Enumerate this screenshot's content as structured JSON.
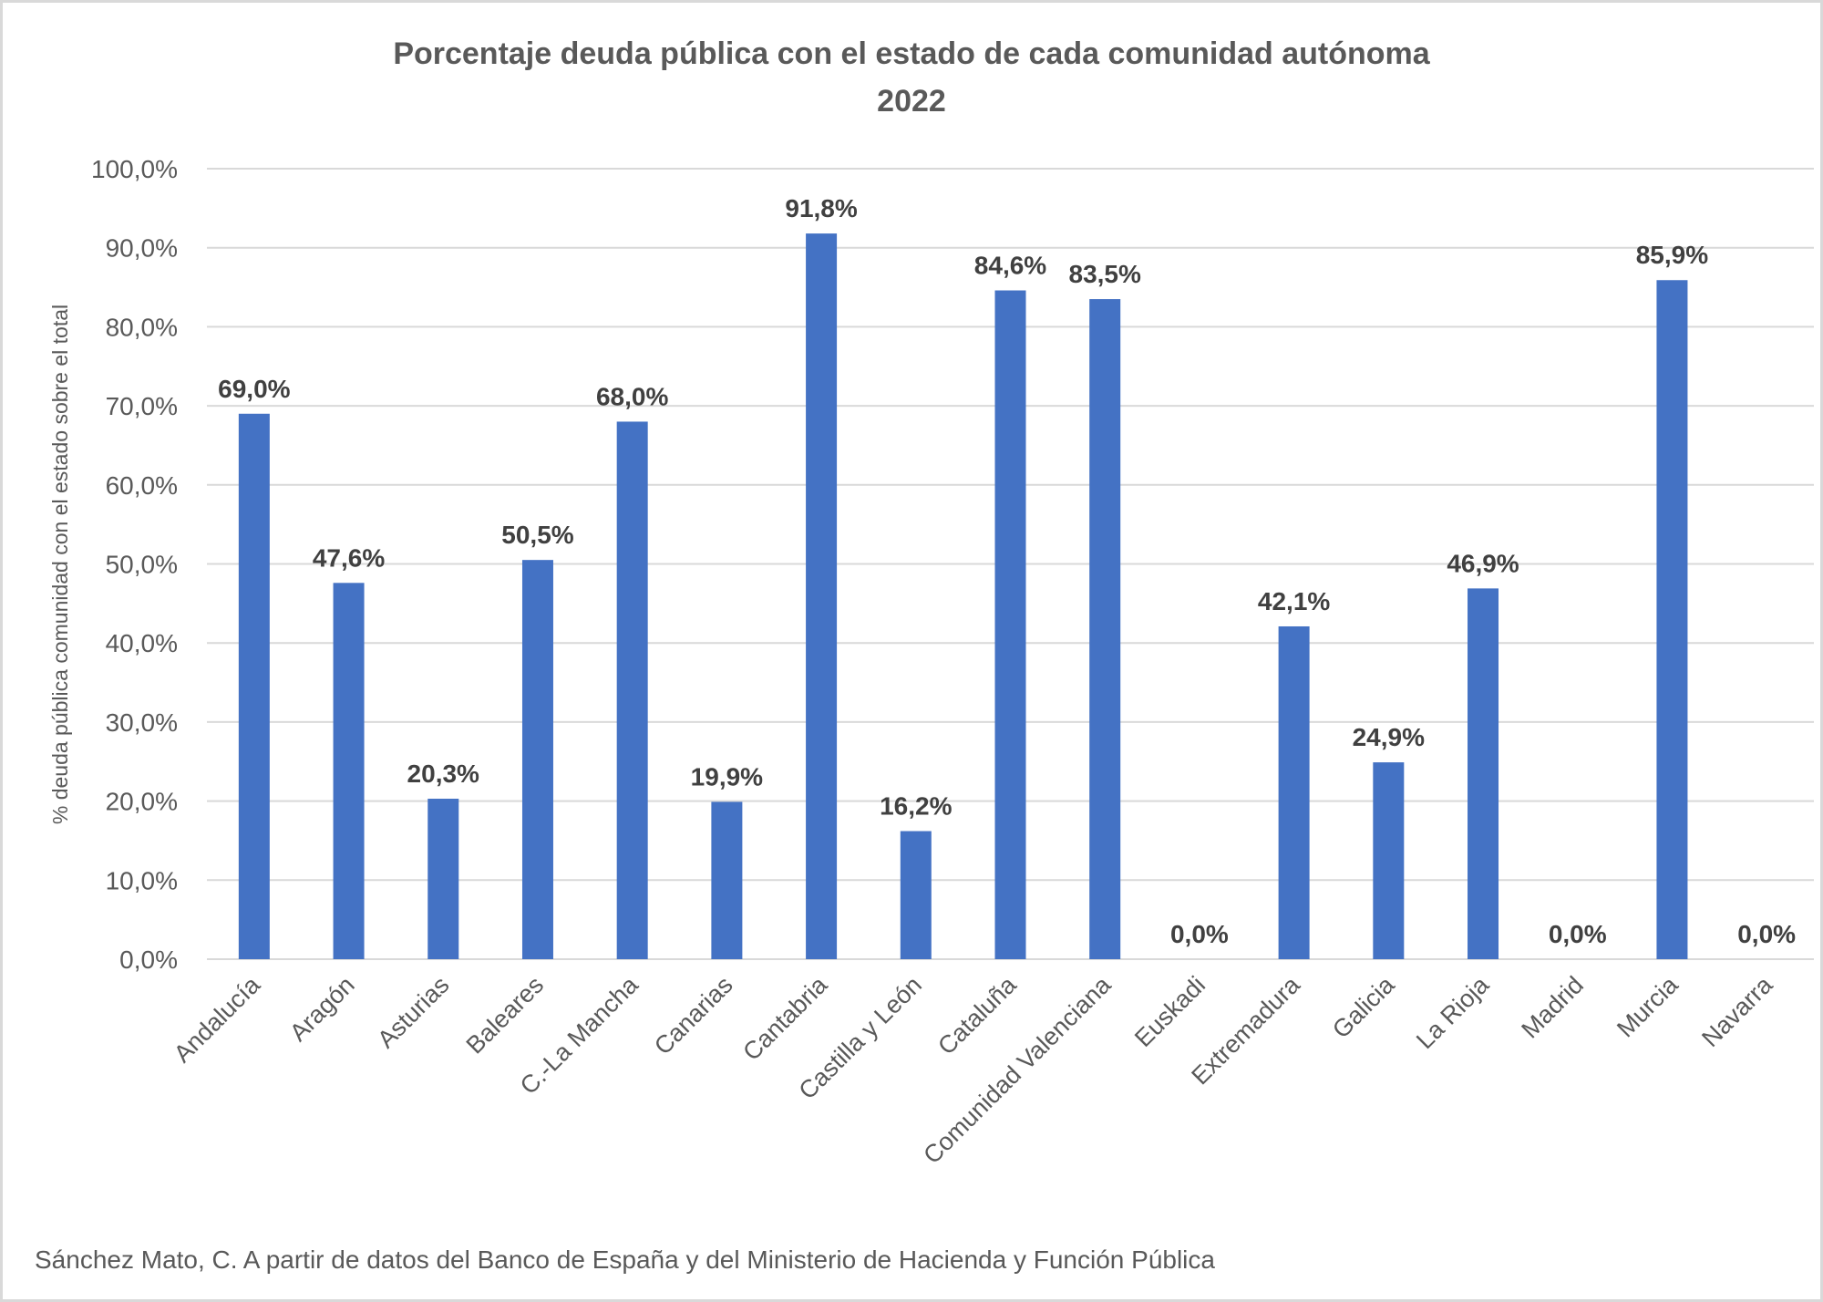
{
  "chart_data": {
    "type": "bar",
    "title": "Porcentaje deuda pública con el estado de cada comunidad autónoma",
    "subtitle": "2022",
    "xlabel": "",
    "ylabel": "% deuda pública comunidad con el estado sobre el total",
    "ylim": [
      0,
      100
    ],
    "yticks": [
      "0,0%",
      "10,0%",
      "20,0%",
      "30,0%",
      "40,0%",
      "50,0%",
      "60,0%",
      "70,0%",
      "80,0%",
      "90,0%",
      "100,0%"
    ],
    "grid": true,
    "bar_color": "#4472C4",
    "categories": [
      "Andalucía",
      "Aragón",
      "Asturias",
      "Baleares",
      "C.-La Mancha",
      "Canarias",
      "Cantabria",
      "Castilla y León",
      "Cataluña",
      "Comunidad Valenciana",
      "Euskadi",
      "Extremadura",
      "Galicia",
      "La Rioja",
      "Madrid",
      "Murcia",
      "Navarra"
    ],
    "values": [
      69.0,
      47.6,
      20.3,
      50.5,
      68.0,
      19.9,
      91.8,
      16.2,
      84.6,
      83.5,
      0.0,
      42.1,
      24.9,
      46.9,
      0.0,
      85.9,
      0.0
    ],
    "data_labels": [
      "69,0%",
      "47,6%",
      "20,3%",
      "50,5%",
      "68,0%",
      "19,9%",
      "91,8%",
      "16,2%",
      "84,6%",
      "83,5%",
      "0,0%",
      "42,1%",
      "24,9%",
      "46,9%",
      "0,0%",
      "85,9%",
      "0,0%"
    ]
  },
  "source": "Sánchez Mato, C.  A partir de datos del Banco de España y del Ministerio de Hacienda y Función Pública"
}
